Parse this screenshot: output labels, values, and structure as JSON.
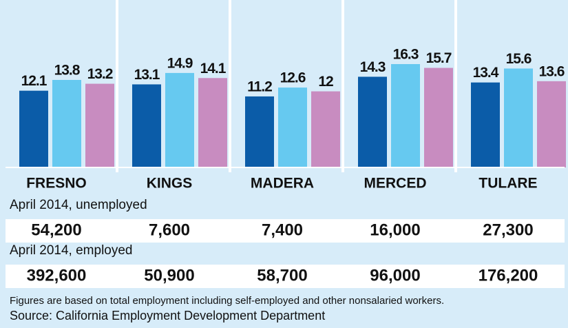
{
  "chart_data": {
    "type": "bar",
    "categories": [
      "FRESNO",
      "KINGS",
      "MADERA",
      "MERCED",
      "TULARE"
    ],
    "series": [
      {
        "color": "#0b5ca8",
        "values": [
          12.1,
          13.1,
          11.2,
          14.3,
          13.4
        ]
      },
      {
        "color": "#66c9f0",
        "values": [
          13.8,
          14.9,
          12.6,
          16.3,
          15.6
        ]
      },
      {
        "color": "#c88cc0",
        "values": [
          13.2,
          14.1,
          12,
          15.7,
          13.6
        ]
      }
    ]
  },
  "rows": [
    {
      "label": "April 2014, unemployed",
      "values": [
        "54,200",
        "7,600",
        "7,400",
        "16,000",
        "27,300"
      ]
    },
    {
      "label": "April 2014, employed",
      "values": [
        "392,600",
        "50,900",
        "58,700",
        "96,000",
        "176,200"
      ]
    }
  ],
  "note": "Figures are based on total employment including self-employed and other nonsalaried workers.",
  "source": "Source: California Employment Development Department"
}
